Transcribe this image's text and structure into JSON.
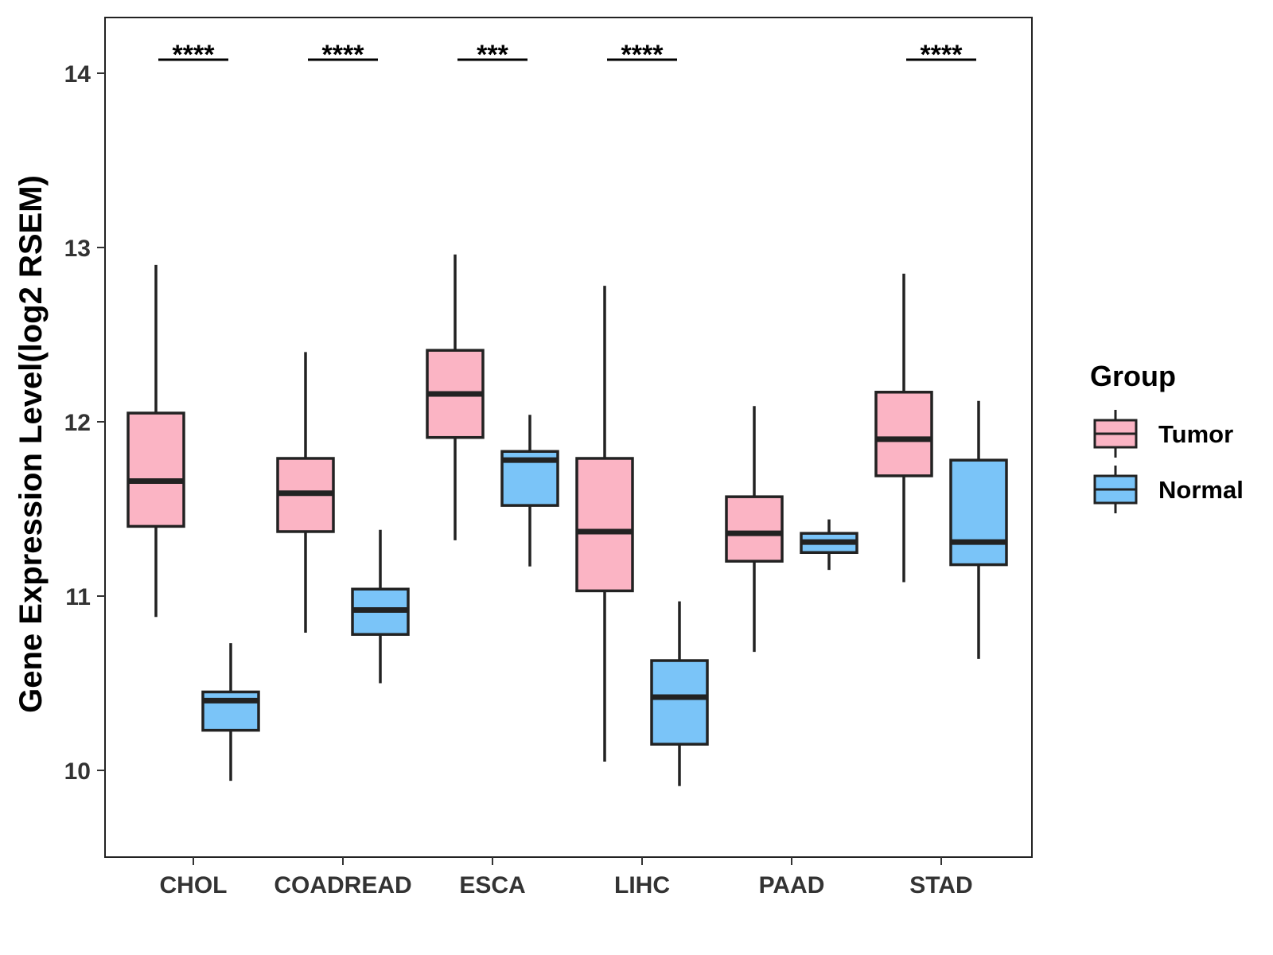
{
  "chart_data": {
    "type": "boxplot",
    "title": "",
    "xlabel": "",
    "ylabel": "Gene Expression Level(log2 RSEM)",
    "ylim": [
      9.5,
      14.3
    ],
    "yticks": [
      10,
      11,
      12,
      13,
      14
    ],
    "categories": [
      "CHOL",
      "COADREAD",
      "ESCA",
      "LIHC",
      "PAAD",
      "STAD"
    ],
    "legend": {
      "title": "Group",
      "position": "right",
      "entries": [
        {
          "name": "Tumor",
          "color": "#FBB4C4"
        },
        {
          "name": "Normal",
          "color": "#7AC4F8"
        }
      ]
    },
    "series": [
      {
        "name": "Tumor",
        "color": "#FBB4C4",
        "boxes": [
          {
            "min": 10.88,
            "q1": 11.4,
            "median": 11.66,
            "q3": 12.05,
            "max": 12.9
          },
          {
            "min": 10.79,
            "q1": 11.37,
            "median": 11.59,
            "q3": 11.79,
            "max": 12.4
          },
          {
            "min": 11.32,
            "q1": 11.91,
            "median": 12.16,
            "q3": 12.41,
            "max": 12.96
          },
          {
            "min": 10.05,
            "q1": 11.03,
            "median": 11.37,
            "q3": 11.79,
            "max": 12.78
          },
          {
            "min": 10.68,
            "q1": 11.2,
            "median": 11.36,
            "q3": 11.57,
            "max": 12.09
          },
          {
            "min": 11.08,
            "q1": 11.69,
            "median": 11.9,
            "q3": 12.17,
            "max": 12.85
          }
        ]
      },
      {
        "name": "Normal",
        "color": "#7AC4F8",
        "boxes": [
          {
            "min": 9.94,
            "q1": 10.23,
            "median": 10.4,
            "q3": 10.45,
            "max": 10.73
          },
          {
            "min": 10.5,
            "q1": 10.78,
            "median": 10.92,
            "q3": 11.04,
            "max": 11.38
          },
          {
            "min": 11.17,
            "q1": 11.52,
            "median": 11.78,
            "q3": 11.83,
            "max": 12.04
          },
          {
            "min": 9.91,
            "q1": 10.15,
            "median": 10.42,
            "q3": 10.63,
            "max": 10.97
          },
          {
            "min": 11.15,
            "q1": 11.25,
            "median": 11.31,
            "q3": 11.36,
            "max": 11.44
          },
          {
            "min": 10.64,
            "q1": 11.18,
            "median": 11.31,
            "q3": 11.78,
            "max": 12.12
          }
        ]
      }
    ],
    "significance": [
      "****",
      "****",
      "***",
      "****",
      "",
      "****"
    ]
  }
}
